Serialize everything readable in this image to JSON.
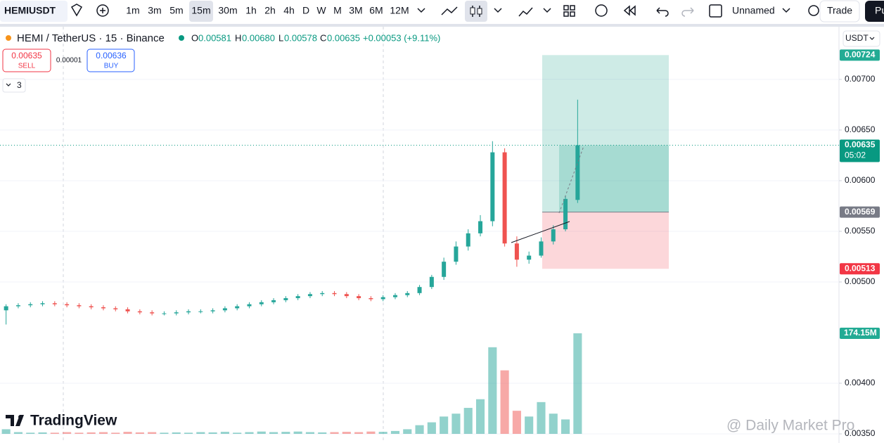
{
  "toolbar": {
    "symbol": "HEMIUSDT",
    "intervals": [
      "1m",
      "3m",
      "5m",
      "15m",
      "30m",
      "1h",
      "2h",
      "4h",
      "D",
      "W",
      "M",
      "3M",
      "6M",
      "12M"
    ],
    "layout_name": "Unnamed",
    "trade": "Trade",
    "publish": "Pu"
  },
  "legend": {
    "title": "HEMI / TetherUS · 15 · Binance",
    "o_label": "O",
    "o": "0.00581",
    "h_label": "H",
    "h": "0.00680",
    "l_label": "L",
    "l": "0.00578",
    "c_label": "C",
    "c": "0.00635",
    "change": "+0.00053 (+9.11%)"
  },
  "order": {
    "sell_price": "0.00635",
    "sell": "SELL",
    "spread": "0.00001",
    "buy_price": "0.00636",
    "buy": "BUY",
    "indicators": "3"
  },
  "currency": "USDT",
  "logo": "TradingView",
  "watermark": "@ Daily Market Pro",
  "chart_data": {
    "type": "candlestick",
    "open": [
      0.00472,
      0.00476,
      0.00477,
      0.00478,
      0.00479,
      0.00478,
      0.00477,
      0.00476,
      0.00475,
      0.00474,
      0.00473,
      0.00471,
      0.0047,
      0.00469,
      0.00469,
      0.0047,
      0.00471,
      0.00471,
      0.00472,
      0.00474,
      0.00476,
      0.00478,
      0.0048,
      0.00482,
      0.00484,
      0.00486,
      0.00488,
      0.00489,
      0.00488,
      0.00486,
      0.00484,
      0.00483,
      0.00485,
      0.00487,
      0.00489,
      0.00495,
      0.00505,
      0.0052,
      0.00535,
      0.00548,
      0.0056,
      0.00628,
      0.00538,
      0.00522,
      0.00526,
      0.0054,
      0.00552,
      0.00581
    ],
    "high": [
      0.00478,
      0.00479,
      0.0048,
      0.00481,
      0.00481,
      0.0048,
      0.00479,
      0.00478,
      0.00477,
      0.00476,
      0.00475,
      0.00473,
      0.00472,
      0.00471,
      0.00472,
      0.00473,
      0.00473,
      0.00474,
      0.00476,
      0.00478,
      0.0048,
      0.00482,
      0.00484,
      0.00486,
      0.00488,
      0.0049,
      0.00491,
      0.00491,
      0.0049,
      0.00488,
      0.00486,
      0.00487,
      0.00489,
      0.00491,
      0.00497,
      0.00507,
      0.00524,
      0.0054,
      0.00552,
      0.00566,
      0.00639,
      0.00632,
      0.00545,
      0.0053,
      0.00544,
      0.00556,
      0.00585,
      0.0068
    ],
    "low": [
      0.00458,
      0.00474,
      0.00475,
      0.00476,
      0.00476,
      0.00475,
      0.00474,
      0.00473,
      0.00472,
      0.00471,
      0.00469,
      0.00468,
      0.00467,
      0.00467,
      0.00467,
      0.00468,
      0.00469,
      0.00469,
      0.0047,
      0.00472,
      0.00474,
      0.00476,
      0.00478,
      0.0048,
      0.00482,
      0.00484,
      0.00486,
      0.00486,
      0.00484,
      0.00482,
      0.00481,
      0.00481,
      0.00483,
      0.00485,
      0.00487,
      0.00493,
      0.00502,
      0.00517,
      0.00531,
      0.00545,
      0.00555,
      0.00535,
      0.00515,
      0.00518,
      0.00524,
      0.00537,
      0.0055,
      0.00578
    ],
    "close": [
      0.00476,
      0.00477,
      0.00478,
      0.00479,
      0.00478,
      0.00477,
      0.00476,
      0.00475,
      0.00474,
      0.00473,
      0.00471,
      0.0047,
      0.00469,
      0.00469,
      0.0047,
      0.00471,
      0.00471,
      0.00472,
      0.00474,
      0.00476,
      0.00478,
      0.0048,
      0.00482,
      0.00484,
      0.00486,
      0.00488,
      0.00489,
      0.00488,
      0.00486,
      0.00484,
      0.00483,
      0.00485,
      0.00487,
      0.00489,
      0.00495,
      0.00505,
      0.0052,
      0.00535,
      0.00548,
      0.0056,
      0.00628,
      0.00538,
      0.00522,
      0.00526,
      0.0054,
      0.00552,
      0.00582,
      0.00635
    ],
    "volume": [
      8000000,
      3000000,
      2000000,
      2500000,
      2000000,
      3000000,
      2000000,
      2500000,
      3000000,
      2000000,
      3500000,
      2500000,
      3000000,
      2000000,
      2500000,
      2000000,
      3000000,
      2500000,
      3500000,
      2000000,
      3000000,
      4000000,
      3000000,
      3500000,
      4000000,
      3000000,
      2500000,
      3000000,
      3500000,
      3000000,
      4000000,
      3500000,
      5000000,
      8000000,
      15000000,
      20000000,
      30000000,
      35000000,
      45000000,
      60000000,
      150000000,
      110000000,
      40000000,
      30000000,
      55000000,
      35000000,
      25000000,
      174150000
    ],
    "ylim": [
      0.00341,
      0.00752
    ],
    "yticks": [
      {
        "value": 0.0035,
        "label": "0.00350"
      },
      {
        "value": 0.004,
        "label": "0.00400"
      },
      {
        "value": 0.005,
        "label": "0.00500"
      },
      {
        "value": 0.0055,
        "label": "0.00550"
      },
      {
        "value": 0.006,
        "label": "0.00600"
      },
      {
        "value": 0.0065,
        "label": "0.00650"
      },
      {
        "value": 0.007,
        "label": "0.00700"
      }
    ],
    "grid": true,
    "up_color": "#26a69a",
    "down_color": "#ef5350",
    "price_labels": [
      {
        "value": 0.00724,
        "label": "0.00724",
        "color": "#22ab94"
      },
      {
        "value": 0.00635,
        "label": "0.00635",
        "color": "#089981"
      },
      {
        "value": 0.00569,
        "label": "0.00569",
        "color": "#787b86"
      },
      {
        "value": 0.00513,
        "label": "0.00513",
        "color": "#f23645"
      }
    ],
    "countdown": "05:02",
    "volume_label": {
      "value": 174150000,
      "label": "174.15M",
      "color": "#22ab94"
    }
  }
}
